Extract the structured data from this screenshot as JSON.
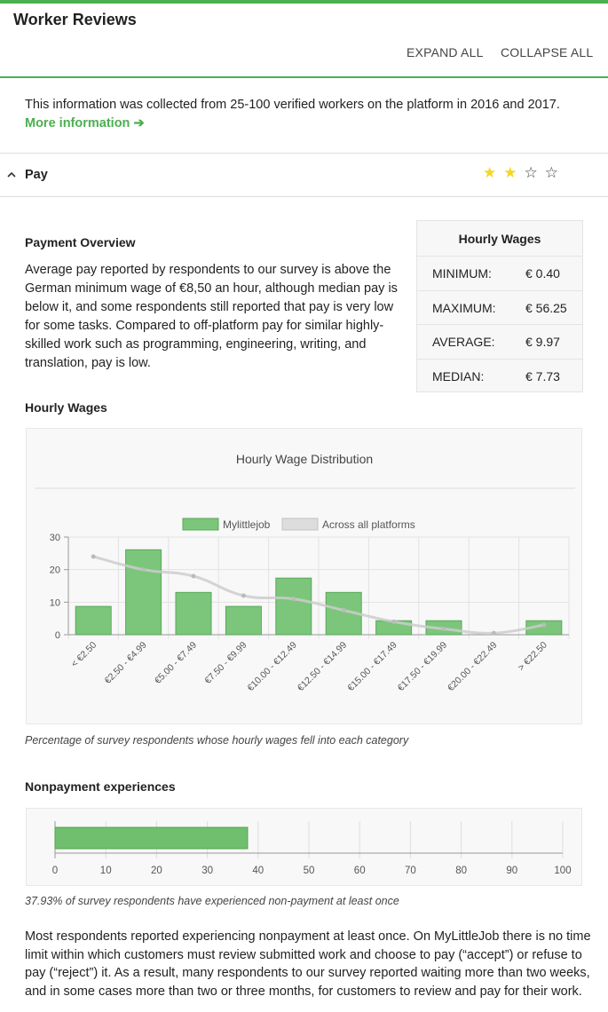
{
  "header": {
    "title": "Worker Reviews",
    "expand_all": "EXPAND ALL",
    "collapse_all": "COLLAPSE ALL"
  },
  "intro": {
    "text": "This information was collected from 25-100 verified workers on the platform in 2016 and 2017.",
    "more_link": "More information ➔"
  },
  "section": {
    "title": "Pay",
    "chevron_icon": "chevron-up-icon",
    "rating": 2,
    "rating_max": 4,
    "star_on_color": "#f5d623"
  },
  "overview": {
    "title": "Payment Overview",
    "text": "Average pay reported by respondents to our survey is above the German minimum wage of €8,50 an hour, although median pay is below it, and some respondents still reported that pay is very low for some tasks. Compared to off-platform pay for similar highly-skilled work such as programming, engineering, writing, and translation, pay is low."
  },
  "wage_table": {
    "title": "Hourly Wages",
    "rows": [
      {
        "label": "MINIMUM:",
        "value": "€ 0.40"
      },
      {
        "label": "MAXIMUM:",
        "value": "€ 56.25"
      },
      {
        "label": "AVERAGE:",
        "value": "€ 9.97"
      },
      {
        "label": "MEDIAN:",
        "value": "€ 7.73"
      }
    ]
  },
  "hourly_section_title": "Hourly Wages",
  "hourly_caption": "Percentage of survey respondents whose hourly wages fell into each category",
  "nonpayment": {
    "title": "Nonpayment experiences",
    "caption": "37.93% of survey respondents have experienced non-payment at least once",
    "text": "Most respondents reported experiencing nonpayment at least once. On MyLittleJob there is no time limit within which customers must review submitted work and choose to pay (“accept”) or refuse to pay (“reject”) it. As a result, many respondents to our survey reported waiting more than two weeks, and in some cases more than two or three months, for customers to review and pay for their work."
  },
  "chart_data": [
    {
      "type": "bar",
      "title": "Hourly Wage Distribution",
      "categories": [
        "< €2.50",
        "€2.50 - €4.99",
        "€5.00 - €7.49",
        "€7.50 - €9.99",
        "€10.00 - €12.49",
        "€12.50 - €14.99",
        "€15.00 - €17.49",
        "€17.50 - €19.99",
        "€20.00 - €22.49",
        "> €22.50"
      ],
      "series": [
        {
          "name": "Mylittlejob",
          "type": "bar",
          "color": "#7bc67b",
          "values": [
            8.7,
            26.1,
            13.0,
            8.7,
            17.4,
            13.0,
            4.3,
            4.3,
            0,
            4.3
          ]
        },
        {
          "name": "Across all platforms",
          "type": "line",
          "color": "#cccccc",
          "values": [
            24,
            20,
            18,
            12,
            11,
            7.5,
            4,
            1.8,
            0.5,
            3
          ]
        }
      ],
      "yticks": [
        0,
        10,
        20,
        30
      ],
      "ylim": [
        0,
        30
      ],
      "legend": "top",
      "grid": true
    },
    {
      "type": "bar",
      "orientation": "horizontal",
      "values": [
        37.93
      ],
      "color": "#6fbf6f",
      "xticks": [
        0,
        10,
        20,
        30,
        40,
        50,
        60,
        70,
        80,
        90,
        100
      ],
      "xlim": [
        0,
        100
      ],
      "grid": true
    }
  ]
}
